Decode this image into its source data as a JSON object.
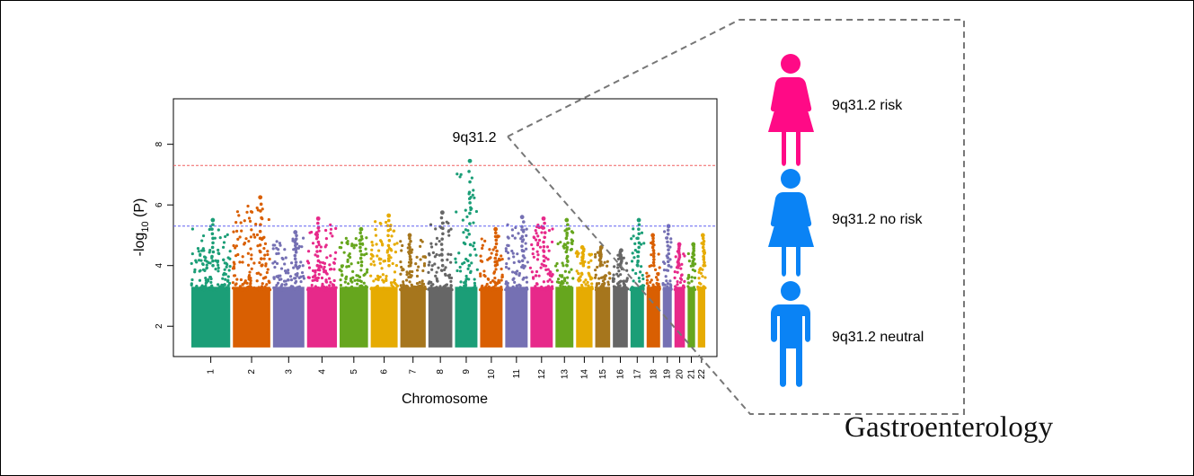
{
  "chart_data": {
    "type": "scatter",
    "subtype": "manhattan",
    "title": "",
    "xlabel": "Chromosome",
    "ylabel_main": "-log",
    "ylabel_sub": "10",
    "ylabel_tail": " (P)",
    "x_categories": [
      "1",
      "2",
      "3",
      "4",
      "5",
      "6",
      "7",
      "8",
      "9",
      "10",
      "11",
      "12",
      "13",
      "14",
      "15",
      "16",
      "17",
      "18",
      "19",
      "20",
      "21",
      "22"
    ],
    "y_ticks": [
      2,
      4,
      6,
      8
    ],
    "ylim": [
      1,
      9.5
    ],
    "genome_wide_threshold": 7.3,
    "suggestive_threshold": 5.3,
    "colors": [
      "#1b9e77",
      "#d95f02",
      "#7570b3",
      "#e7298a",
      "#66a61e",
      "#e6ab02",
      "#a6761d",
      "#666666"
    ],
    "chromosome_peaks": [
      5.5,
      6.25,
      5.1,
      5.55,
      5.2,
      5.65,
      5.0,
      5.75,
      7.45,
      5.2,
      5.6,
      5.55,
      5.5,
      4.6,
      4.6,
      4.5,
      5.5,
      5.0,
      5.3,
      4.7,
      4.7,
      5.0
    ],
    "annotation": "9q31.2",
    "grid": false
  },
  "legend": {
    "risk_label": "9q31.2 risk",
    "no_risk_label": "9q31.2 no risk",
    "neutral_label": "9q31.2 neutral",
    "risk_color": "#ff0a86",
    "other_color": "#0a83f5"
  },
  "journal": "Gastroenterology"
}
